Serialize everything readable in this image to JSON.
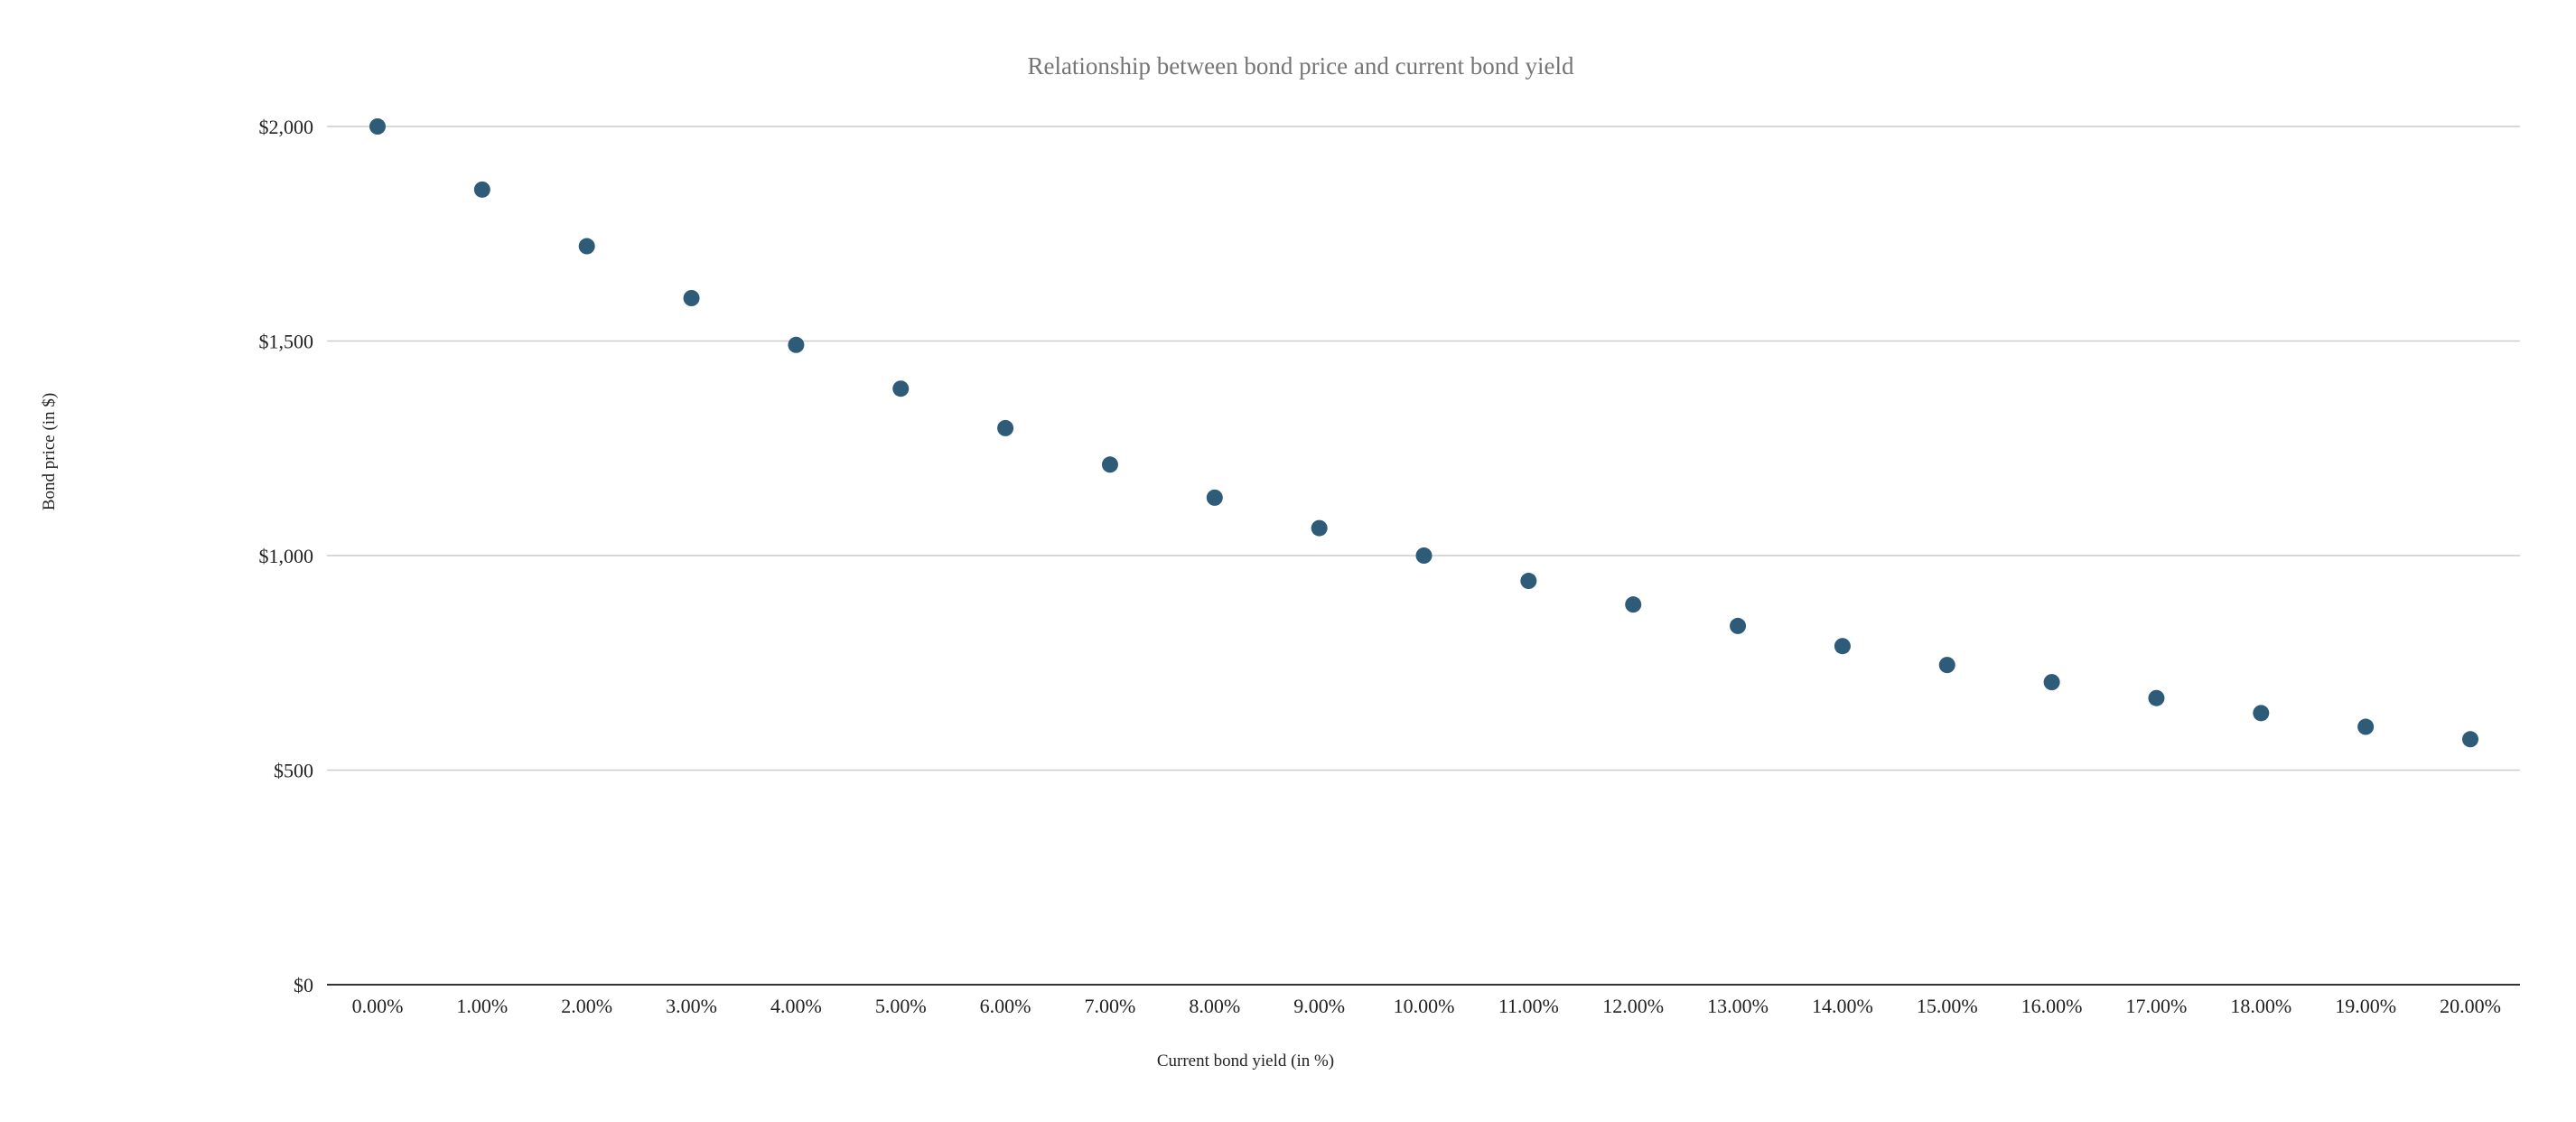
{
  "chart_data": {
    "type": "scatter",
    "title": "Relationship between bond price and current bond yield",
    "xlabel": "Current bond yield (in %)",
    "ylabel": "Bond price (in $)",
    "x_tick_labels": [
      "0.00%",
      "1.00%",
      "2.00%",
      "3.00%",
      "4.00%",
      "5.00%",
      "6.00%",
      "7.00%",
      "8.00%",
      "9.00%",
      "10.00%",
      "11.00%",
      "12.00%",
      "13.00%",
      "14.00%",
      "15.00%",
      "16.00%",
      "17.00%",
      "18.00%",
      "19.00%",
      "20.00%"
    ],
    "y_tick_labels": [
      "$0",
      "$500",
      "$1,000",
      "$1,500",
      "$2,000"
    ],
    "y_ticks": [
      0,
      500,
      1000,
      1500,
      2000
    ],
    "ylim": [
      0,
      2000
    ],
    "grid": true,
    "legend": "none",
    "marker_color": "#2e5b78",
    "series": [
      {
        "x": [
          0,
          1,
          2,
          3,
          4,
          5,
          6,
          7,
          8,
          9,
          10,
          11,
          12,
          13,
          14,
          15,
          16,
          17,
          18,
          19,
          20
        ],
        "values": [
          2000,
          1853,
          1721,
          1600,
          1491,
          1389,
          1297,
          1212,
          1135,
          1064,
          1000,
          941,
          886,
          836,
          789,
          745,
          705,
          668,
          633,
          601,
          572
        ]
      }
    ]
  }
}
